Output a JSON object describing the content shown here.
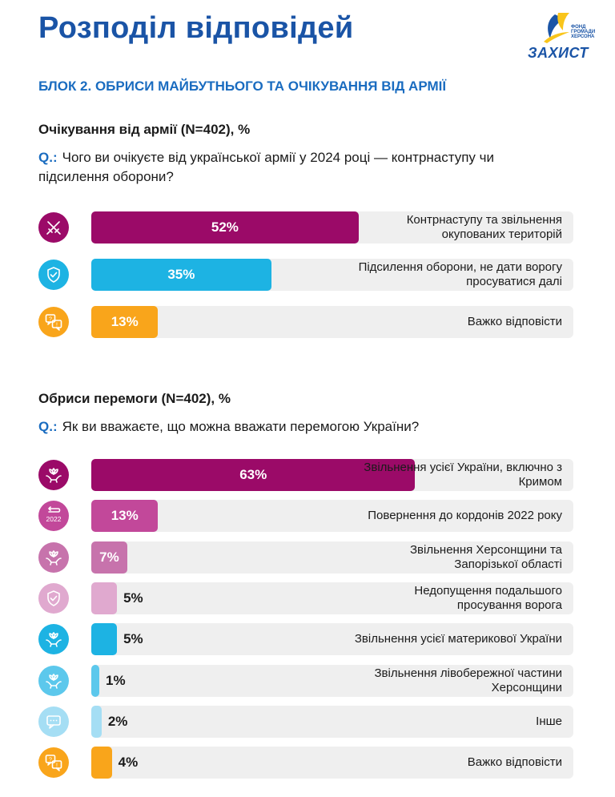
{
  "header": {
    "title": "Розподіл відповідей",
    "block_title": "БЛОК 2. ОБРИСИ МАЙБУТНЬОГО ТА ОЧІКУВАННЯ ВІД АРМІЇ"
  },
  "logo": {
    "fund_line1": "ФОНД",
    "fund_line2": "ГРОМАДИ",
    "fund_line3": "ХЕРСОНА",
    "brand": "ЗАХИСТ"
  },
  "colors": {
    "title": "#1a54a6",
    "accent": "#1a6cc0",
    "track": "#efefef"
  },
  "chart_data": [
    {
      "type": "bar",
      "orientation": "horizontal",
      "title": "Очікування від армії (N=402), %",
      "question_prefix": "Q.:",
      "question": "Чого ви очікуєте від української армії у 2024 році — контрнаступу чи підсилення оборони?",
      "xlim": [
        0,
        100
      ],
      "categories": [
        "Контрнаступу та звільнення окупованих територій",
        "Підсилення оборони, не дати ворогу просуватися далі",
        "Важко відповісти"
      ],
      "values": [
        52,
        35,
        13
      ],
      "value_labels": [
        "52%",
        "35%",
        "13%"
      ],
      "colors": [
        "#9b0a68",
        "#1db3e3",
        "#f9a51b"
      ],
      "icons": [
        "swords-icon",
        "shield-check-icon",
        "question-chat-icon"
      ]
    },
    {
      "type": "bar",
      "orientation": "horizontal",
      "title": "Обриси перемоги (N=402), %",
      "question_prefix": "Q.:",
      "question": "Як ви вважаєте, що можна вважати перемогою України?",
      "xlim": [
        0,
        100
      ],
      "categories": [
        "Звільнення усієї України, включно з Кримом",
        "Повернення до кордонів 2022 року",
        "Звільнення Херсонщини та Запорізької області",
        "Недопущення подальшого просування ворога",
        "Звільнення усієї материкової України",
        "Звільнення лівобережної частини Херсонщини",
        "Інше",
        "Важко відповісти"
      ],
      "values": [
        63,
        13,
        7,
        5,
        5,
        1,
        2,
        4
      ],
      "value_labels": [
        "63%",
        "13%",
        "7%",
        "5%",
        "5%",
        "1%",
        "2%",
        "4%"
      ],
      "colors": [
        "#9b0a68",
        "#c2489a",
        "#c773ac",
        "#e0a9cf",
        "#1db3e3",
        "#5cc8ec",
        "#a5def4",
        "#f9a51b"
      ],
      "icons": [
        "hands-flower-icon",
        "return-2022-icon",
        "hands-flower-icon",
        "shield-check-icon",
        "hands-flower-icon",
        "hands-flower-icon",
        "chat-bubble-icon",
        "question-chat-icon"
      ],
      "icon_badge_text": "2022"
    }
  ]
}
